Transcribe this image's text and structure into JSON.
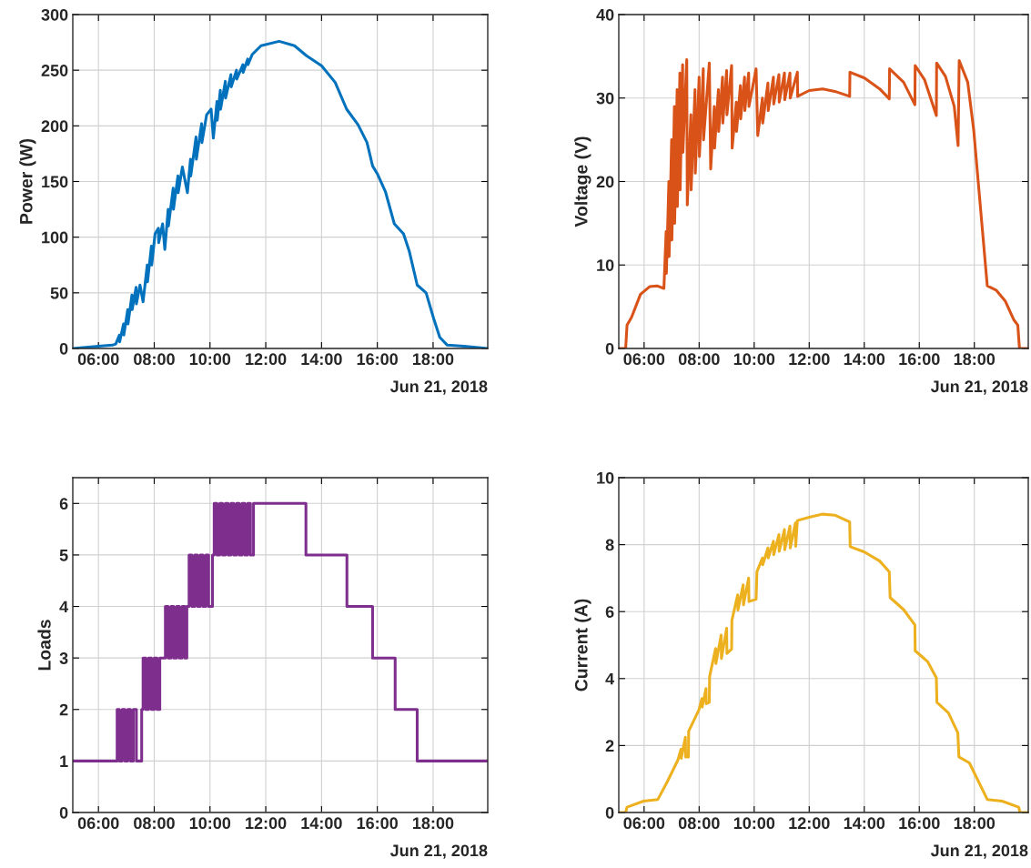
{
  "chart_data": [
    {
      "type": "line",
      "ylabel": "Power (W)",
      "annotations": [
        "Jun 21, 2018"
      ],
      "grid": true,
      "xlim": [
        5.08,
        19.96
      ],
      "ylim": [
        0,
        300
      ],
      "yticks": [
        0,
        50,
        100,
        150,
        200,
        250,
        300
      ],
      "xticks": [
        {
          "value": 6,
          "label": "06:00"
        },
        {
          "value": 8,
          "label": "08:00"
        },
        {
          "value": 10,
          "label": "10:00"
        },
        {
          "value": 12,
          "label": "12:00"
        },
        {
          "value": 14,
          "label": "14:00"
        },
        {
          "value": 16,
          "label": "16:00"
        },
        {
          "value": 18,
          "label": "18:00"
        }
      ],
      "x": [
        5.08,
        6.0,
        6.5,
        6.62,
        6.75,
        6.76,
        6.9,
        6.91,
        7.05,
        7.06,
        7.2,
        7.21,
        7.35,
        7.36,
        7.49,
        7.6,
        7.75,
        7.76,
        7.9,
        7.91,
        8.03,
        8.15,
        8.16,
        8.3,
        8.38,
        8.5,
        8.51,
        8.68,
        8.69,
        8.85,
        8.86,
        9.01,
        9.19,
        9.3,
        9.31,
        9.5,
        9.51,
        9.7,
        9.71,
        9.88,
        10.04,
        10.12,
        10.25,
        10.26,
        10.37,
        10.38,
        10.55,
        10.56,
        10.75,
        10.76,
        10.95,
        10.96,
        11.18,
        11.19,
        11.35,
        11.36,
        11.51,
        11.83,
        12.48,
        13.03,
        13.46,
        14.0,
        14.49,
        14.9,
        15.31,
        15.63,
        15.83,
        16.0,
        16.29,
        16.61,
        16.94,
        17.15,
        17.43,
        17.75,
        18.02,
        18.24,
        18.51,
        19.11,
        19.96
      ],
      "series": [
        {
          "color": "#0072bd",
          "values": [
            0,
            2,
            3,
            4,
            12,
            6,
            22,
            12,
            35,
            22,
            48,
            35,
            55,
            40,
            57,
            42,
            75,
            60,
            92,
            75,
            103,
            108,
            95,
            112,
            89,
            125,
            110,
            144,
            125,
            155,
            140,
            163,
            140,
            170,
            155,
            190,
            170,
            202,
            185,
            210,
            215,
            189,
            222,
            205,
            232,
            215,
            240,
            225,
            246,
            235,
            250,
            242,
            255,
            248,
            260,
            255,
            264,
            272,
            276,
            272,
            263,
            254,
            239,
            215,
            201,
            185,
            164,
            157,
            141,
            112,
            103,
            87,
            57,
            50,
            27,
            10,
            3,
            2,
            0
          ]
        }
      ]
    },
    {
      "type": "line",
      "ylabel": "Voltage (V)",
      "annotations": [
        "Jun 21, 2018"
      ],
      "grid": true,
      "xlim": [
        5.08,
        19.96
      ],
      "ylim": [
        0,
        40
      ],
      "yticks": [
        0,
        10,
        20,
        30,
        40
      ],
      "xticks": [
        {
          "value": 6,
          "label": "06:00"
        },
        {
          "value": 8,
          "label": "08:00"
        },
        {
          "value": 10,
          "label": "10:00"
        },
        {
          "value": 12,
          "label": "12:00"
        },
        {
          "value": 14,
          "label": "14:00"
        },
        {
          "value": 16,
          "label": "16:00"
        },
        {
          "value": 18,
          "label": "18:00"
        }
      ],
      "x": [
        5.08,
        5.33,
        5.38,
        5.54,
        5.87,
        6.2,
        6.47,
        6.72,
        6.8,
        6.81,
        6.9,
        6.91,
        7.0,
        7.01,
        7.1,
        7.11,
        7.2,
        7.21,
        7.3,
        7.31,
        7.4,
        7.41,
        7.55,
        7.57,
        7.7,
        7.71,
        7.85,
        7.86,
        8.0,
        8.01,
        8.15,
        8.16,
        8.37,
        8.42,
        8.55,
        8.56,
        8.7,
        8.71,
        8.85,
        8.86,
        9.0,
        9.01,
        9.18,
        9.2,
        9.35,
        9.36,
        9.5,
        9.51,
        9.65,
        9.66,
        9.8,
        9.81,
        10.07,
        10.13,
        10.3,
        10.31,
        10.5,
        10.51,
        10.7,
        10.71,
        10.9,
        10.91,
        11.1,
        11.11,
        11.3,
        11.31,
        11.57,
        11.58,
        12.0,
        12.49,
        12.93,
        13.47,
        13.48,
        14.01,
        14.56,
        14.91,
        14.92,
        15.43,
        15.84,
        15.85,
        16.19,
        16.62,
        16.63,
        16.95,
        17.27,
        17.41,
        17.45,
        17.76,
        17.98,
        18.47,
        18.79,
        19.12,
        19.44,
        19.58,
        19.64,
        19.96
      ],
      "series": [
        {
          "color": "#d95319",
          "values": [
            0,
            0,
            2.8,
            3.7,
            6.5,
            7.4,
            7.5,
            7.2,
            14,
            9,
            20,
            11,
            25,
            13,
            29,
            15,
            31,
            17,
            33,
            19,
            34,
            23.5,
            34.6,
            17.2,
            28,
            19,
            31,
            21,
            32.5,
            23,
            33.5,
            25,
            34.2,
            21.5,
            29,
            24,
            31,
            26,
            32.5,
            27,
            33.3,
            28,
            33.9,
            24.0,
            29.5,
            26,
            31.5,
            27.5,
            32.5,
            28.5,
            33,
            29,
            33.5,
            25.5,
            30,
            27,
            31.8,
            28.5,
            32.5,
            29.3,
            32.8,
            29.5,
            33,
            29.8,
            33,
            30,
            33.1,
            30.2,
            30.9,
            31.1,
            30.8,
            30.2,
            33.1,
            32.4,
            31.1,
            29.9,
            33.5,
            31.9,
            29.2,
            33.9,
            32.2,
            27.9,
            34.2,
            32.6,
            29.0,
            24.3,
            34.5,
            31.9,
            26.1,
            7.5,
            7.0,
            5.7,
            3.4,
            2.8,
            0,
            0
          ]
        }
      ]
    },
    {
      "type": "line",
      "ylabel": "Loads",
      "annotations": [
        "Jun 21, 2018"
      ],
      "grid": true,
      "xlim": [
        5.08,
        19.96
      ],
      "ylim": [
        0,
        6.5
      ],
      "yticks": [
        0,
        1,
        2,
        3,
        4,
        5,
        6
      ],
      "xticks": [
        {
          "value": 6,
          "label": "06:00"
        },
        {
          "value": 8,
          "label": "08:00"
        },
        {
          "value": 10,
          "label": "10:00"
        },
        {
          "value": 12,
          "label": "12:00"
        },
        {
          "value": 14,
          "label": "14:00"
        },
        {
          "value": 16,
          "label": "16:00"
        },
        {
          "value": 18,
          "label": "18:00"
        }
      ],
      "x": [
        5.08,
        6.67,
        6.67,
        6.75,
        6.75,
        6.85,
        6.85,
        6.95,
        6.95,
        7.05,
        7.05,
        7.15,
        7.15,
        7.25,
        7.25,
        7.36,
        7.36,
        7.55,
        7.55,
        7.6,
        7.6,
        7.7,
        7.7,
        7.8,
        7.8,
        7.9,
        7.9,
        8.0,
        8.0,
        8.1,
        8.1,
        8.2,
        8.2,
        8.3,
        8.3,
        8.4,
        8.4,
        8.5,
        8.5,
        8.6,
        8.6,
        8.7,
        8.7,
        8.8,
        8.8,
        8.9,
        8.9,
        9.0,
        9.0,
        9.1,
        9.1,
        9.17,
        9.17,
        9.25,
        9.25,
        9.35,
        9.35,
        9.45,
        9.45,
        9.55,
        9.55,
        9.65,
        9.65,
        9.75,
        9.75,
        9.85,
        9.85,
        9.95,
        9.95,
        10.09,
        10.09,
        10.15,
        10.15,
        10.25,
        10.25,
        10.35,
        10.35,
        10.45,
        10.45,
        10.55,
        10.55,
        10.65,
        10.65,
        10.75,
        10.75,
        10.85,
        10.85,
        10.95,
        10.95,
        11.05,
        11.05,
        11.15,
        11.15,
        11.25,
        11.25,
        11.35,
        11.35,
        11.45,
        11.45,
        11.56,
        11.56,
        13.44,
        13.44,
        14.91,
        14.91,
        15.83,
        15.83,
        16.64,
        16.64,
        17.43,
        17.43,
        19.96
      ],
      "series": [
        {
          "color": "#7e2f8e",
          "values": [
            1,
            1,
            2,
            2,
            1,
            1,
            2,
            2,
            1,
            1,
            2,
            2,
            1,
            1,
            2,
            2,
            1,
            1,
            2,
            2,
            3,
            3,
            2,
            2,
            3,
            3,
            2,
            2,
            3,
            3,
            2,
            2,
            3,
            3,
            3,
            3,
            4,
            4,
            3,
            3,
            4,
            4,
            3,
            3,
            4,
            4,
            3,
            3,
            4,
            4,
            3,
            3,
            4,
            4,
            5,
            5,
            4,
            4,
            5,
            5,
            4,
            4,
            5,
            5,
            4,
            4,
            5,
            5,
            4,
            4,
            5,
            5,
            6,
            6,
            5,
            5,
            6,
            6,
            5,
            5,
            6,
            6,
            5,
            5,
            6,
            6,
            5,
            5,
            6,
            6,
            5,
            5,
            6,
            6,
            5,
            5,
            6,
            6,
            5,
            5,
            6,
            6,
            5,
            5,
            4,
            4,
            3,
            3,
            2,
            2,
            1,
            1
          ]
        }
      ]
    },
    {
      "type": "line",
      "ylabel": "Current (A)",
      "annotations": [
        "Jun 21, 2018"
      ],
      "grid": true,
      "xlim": [
        5.08,
        19.96
      ],
      "ylim": [
        0,
        10
      ],
      "yticks": [
        0,
        2,
        4,
        6,
        8,
        10
      ],
      "xticks": [
        {
          "value": 6,
          "label": "06:00"
        },
        {
          "value": 8,
          "label": "08:00"
        },
        {
          "value": 10,
          "label": "10:00"
        },
        {
          "value": 12,
          "label": "12:00"
        },
        {
          "value": 14,
          "label": "14:00"
        },
        {
          "value": 16,
          "label": "16:00"
        },
        {
          "value": 18,
          "label": "18:00"
        }
      ],
      "x": [
        5.08,
        5.33,
        5.38,
        5.98,
        6.5,
        6.85,
        7.23,
        7.34,
        7.35,
        7.5,
        7.51,
        7.61,
        7.62,
        7.99,
        8.1,
        8.11,
        8.25,
        8.26,
        8.37,
        8.38,
        8.6,
        8.61,
        8.8,
        8.81,
        9.0,
        9.01,
        9.18,
        9.19,
        9.4,
        9.41,
        9.6,
        9.61,
        9.8,
        9.81,
        10.07,
        10.1,
        10.3,
        10.31,
        10.5,
        10.51,
        10.7,
        10.71,
        10.9,
        10.91,
        11.1,
        11.11,
        11.3,
        11.31,
        11.5,
        11.51,
        11.57,
        12.0,
        12.49,
        12.93,
        13.47,
        13.49,
        14.01,
        14.56,
        14.91,
        14.94,
        15.43,
        15.84,
        15.85,
        16.3,
        16.62,
        16.64,
        17.06,
        17.4,
        17.44,
        17.82,
        18.47,
        19.01,
        19.61,
        19.66,
        19.96
      ],
      "series": [
        {
          "color": "#edb120",
          "values": [
            0,
            0,
            0.16,
            0.34,
            0.39,
            0.93,
            1.57,
            1.89,
            1.62,
            2.25,
            1.66,
            1.66,
            2.43,
            3.06,
            3.4,
            3.15,
            3.7,
            3.25,
            3.29,
            4.06,
            4.9,
            4.45,
            5.3,
            4.6,
            5.5,
            4.75,
            4.88,
            5.74,
            6.5,
            6.05,
            6.8,
            6.2,
            7.0,
            6.3,
            6.37,
            7.19,
            7.6,
            7.4,
            7.9,
            7.6,
            8.1,
            7.7,
            8.3,
            7.8,
            8.45,
            7.85,
            8.55,
            7.9,
            8.65,
            7.95,
            8.72,
            8.82,
            8.91,
            8.88,
            8.68,
            7.94,
            7.78,
            7.51,
            7.19,
            6.42,
            6.06,
            5.6,
            4.83,
            4.51,
            4.02,
            3.29,
            2.97,
            2.38,
            1.66,
            1.48,
            0.39,
            0.34,
            0.16,
            0,
            0
          ]
        }
      ]
    }
  ]
}
